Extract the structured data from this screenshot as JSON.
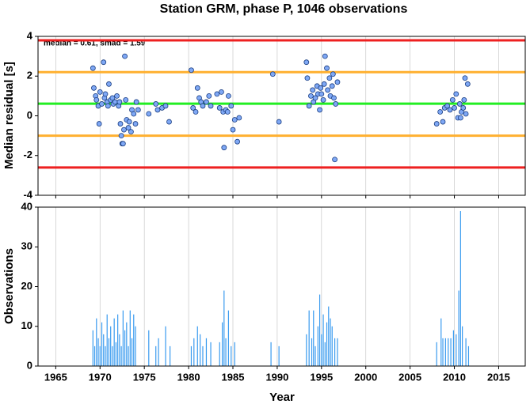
{
  "chart_data": [
    {
      "type": "scatter",
      "title": "Station GRM, phase P, 1046 observations",
      "ylabel": "Median residual [s]",
      "annotation": "median = 0.61, smad = 1.59",
      "xlim": [
        1963,
        2018
      ],
      "xticks": [
        1965,
        1970,
        1975,
        1980,
        1985,
        1990,
        1995,
        2000,
        2005,
        2010,
        2015
      ],
      "ylim": [
        -4,
        4
      ],
      "yticks": [
        -4,
        -2,
        0,
        2,
        4
      ],
      "grid": true,
      "color": "#7fa8f5",
      "hlines": [
        {
          "value": 3.8,
          "color": "#ee2020"
        },
        {
          "value": 2.2,
          "color": "#ffb030"
        },
        {
          "value": 0.61,
          "color": "#22ee22"
        },
        {
          "value": -1.0,
          "color": "#ffb030"
        },
        {
          "value": -2.6,
          "color": "#ee2020"
        }
      ],
      "x": [
        1969.3,
        1969.2,
        1969.5,
        1969.6,
        1969.8,
        1969.9,
        1970.0,
        1970.2,
        1970.4,
        1970.5,
        1970.6,
        1970.8,
        1970.9,
        1971.0,
        1971.2,
        1971.4,
        1971.5,
        1971.7,
        1971.9,
        1972.1,
        1972.2,
        1972.3,
        1972.4,
        1972.5,
        1972.6,
        1972.7,
        1972.8,
        1972.9,
        1973.0,
        1973.2,
        1973.3,
        1973.5,
        1973.6,
        1973.8,
        1974.0,
        1974.1,
        1974.3,
        1975.5,
        1976.3,
        1976.5,
        1977.0,
        1977.4,
        1977.8,
        1980.3,
        1980.5,
        1980.8,
        1981.0,
        1981.2,
        1981.4,
        1981.6,
        1982.0,
        1982.3,
        1982.5,
        1983.2,
        1983.5,
        1983.7,
        1983.9,
        1984.0,
        1984.2,
        1984.4,
        1984.5,
        1984.8,
        1985.0,
        1985.2,
        1985.5,
        1985.7,
        1989.5,
        1990.2,
        1993.3,
        1993.4,
        1993.6,
        1993.8,
        1994.0,
        1994.1,
        1994.3,
        1994.5,
        1994.6,
        1994.8,
        1994.9,
        1995.0,
        1995.2,
        1995.3,
        1995.4,
        1995.6,
        1995.7,
        1995.9,
        1996.0,
        1996.2,
        1996.3,
        1996.4,
        1996.5,
        1996.6,
        1996.8,
        2008.0,
        2008.4,
        2008.7,
        2008.9,
        2009.2,
        2009.5,
        2009.8,
        2010.0,
        2010.2,
        2010.4,
        2010.6,
        2010.7,
        2010.8,
        2011.0,
        2011.1,
        2011.2,
        2011.3,
        2011.5
      ],
      "values": [
        1.4,
        2.4,
        1.0,
        0.8,
        0.5,
        -0.4,
        1.2,
        0.6,
        2.7,
        0.9,
        1.1,
        0.7,
        0.5,
        1.6,
        0.8,
        0.9,
        0.6,
        0.7,
        1.0,
        0.5,
        0.7,
        -0.4,
        -1.0,
        -1.4,
        -1.4,
        -0.7,
        3.0,
        0.8,
        -0.2,
        -0.6,
        -0.3,
        -0.8,
        0.3,
        0.1,
        -0.4,
        0.7,
        0.3,
        0.1,
        0.6,
        0.3,
        0.4,
        0.5,
        -0.3,
        2.3,
        0.4,
        0.2,
        1.4,
        0.9,
        0.7,
        0.5,
        0.7,
        1.0,
        0.5,
        1.1,
        0.4,
        1.2,
        0.2,
        -1.6,
        0.3,
        0.2,
        1.0,
        0.5,
        -0.7,
        -0.2,
        -1.3,
        -0.1,
        2.1,
        -0.3,
        2.7,
        1.9,
        0.5,
        1.0,
        1.3,
        0.7,
        0.9,
        1.5,
        1.1,
        0.3,
        1.4,
        1.1,
        0.8,
        1.6,
        3.0,
        2.4,
        1.3,
        1.9,
        1.0,
        1.5,
        2.1,
        0.9,
        -2.2,
        0.6,
        1.7,
        -0.4,
        0.2,
        -0.3,
        0.4,
        0.5,
        0.3,
        0.8,
        0.4,
        1.1,
        -0.1,
        0.6,
        -0.1,
        0.2,
        0.4,
        0.8,
        1.9,
        0.1,
        1.6
      ]
    },
    {
      "type": "bar",
      "ylabel": "Observations",
      "xlabel": "Year",
      "xlim": [
        1963,
        2018
      ],
      "xticks": [
        1965,
        1970,
        1975,
        1980,
        1985,
        1990,
        1995,
        2000,
        2005,
        2010,
        2015
      ],
      "ylim": [
        0,
        40
      ],
      "yticks": [
        0,
        10,
        20,
        30,
        40
      ],
      "grid": true,
      "color": "#3a9bef",
      "x": [
        1969.2,
        1969.4,
        1969.6,
        1969.8,
        1970.0,
        1970.2,
        1970.4,
        1970.6,
        1970.8,
        1971.0,
        1971.2,
        1971.4,
        1971.6,
        1971.8,
        1972.0,
        1972.2,
        1972.4,
        1972.6,
        1972.8,
        1973.0,
        1973.2,
        1973.4,
        1973.6,
        1973.8,
        1974.0,
        1975.5,
        1976.3,
        1976.6,
        1977.4,
        1977.9,
        1980.3,
        1980.6,
        1981.0,
        1981.3,
        1981.6,
        1982.0,
        1982.5,
        1983.5,
        1983.8,
        1984.0,
        1984.2,
        1984.5,
        1984.8,
        1985.2,
        1989.3,
        1990.2,
        1993.3,
        1993.6,
        1993.9,
        1994.1,
        1994.3,
        1994.6,
        1994.8,
        1995.0,
        1995.2,
        1995.4,
        1995.6,
        1995.8,
        1996.0,
        1996.2,
        1996.5,
        1996.8,
        2008.0,
        2008.5,
        2008.7,
        2009.0,
        2009.3,
        2009.6,
        2009.9,
        2010.2,
        2010.5,
        2010.7,
        2010.9,
        2011.3,
        2011.6
      ],
      "values": [
        9,
        5,
        12,
        7,
        5,
        11,
        8,
        5,
        13,
        7,
        10,
        5,
        12,
        6,
        13,
        8,
        5,
        14,
        9,
        11,
        5,
        14,
        7,
        13,
        10,
        9,
        5,
        7,
        10,
        5,
        5,
        7,
        10,
        8,
        5,
        7,
        6,
        6,
        11,
        19,
        7,
        14,
        5,
        6,
        6,
        5,
        8,
        14,
        7,
        14,
        5,
        10,
        18,
        8,
        13,
        6,
        11,
        15,
        12,
        10,
        7,
        7,
        6,
        12,
        7,
        7,
        7,
        7,
        9,
        8,
        19,
        39,
        10,
        7,
        5
      ]
    }
  ]
}
